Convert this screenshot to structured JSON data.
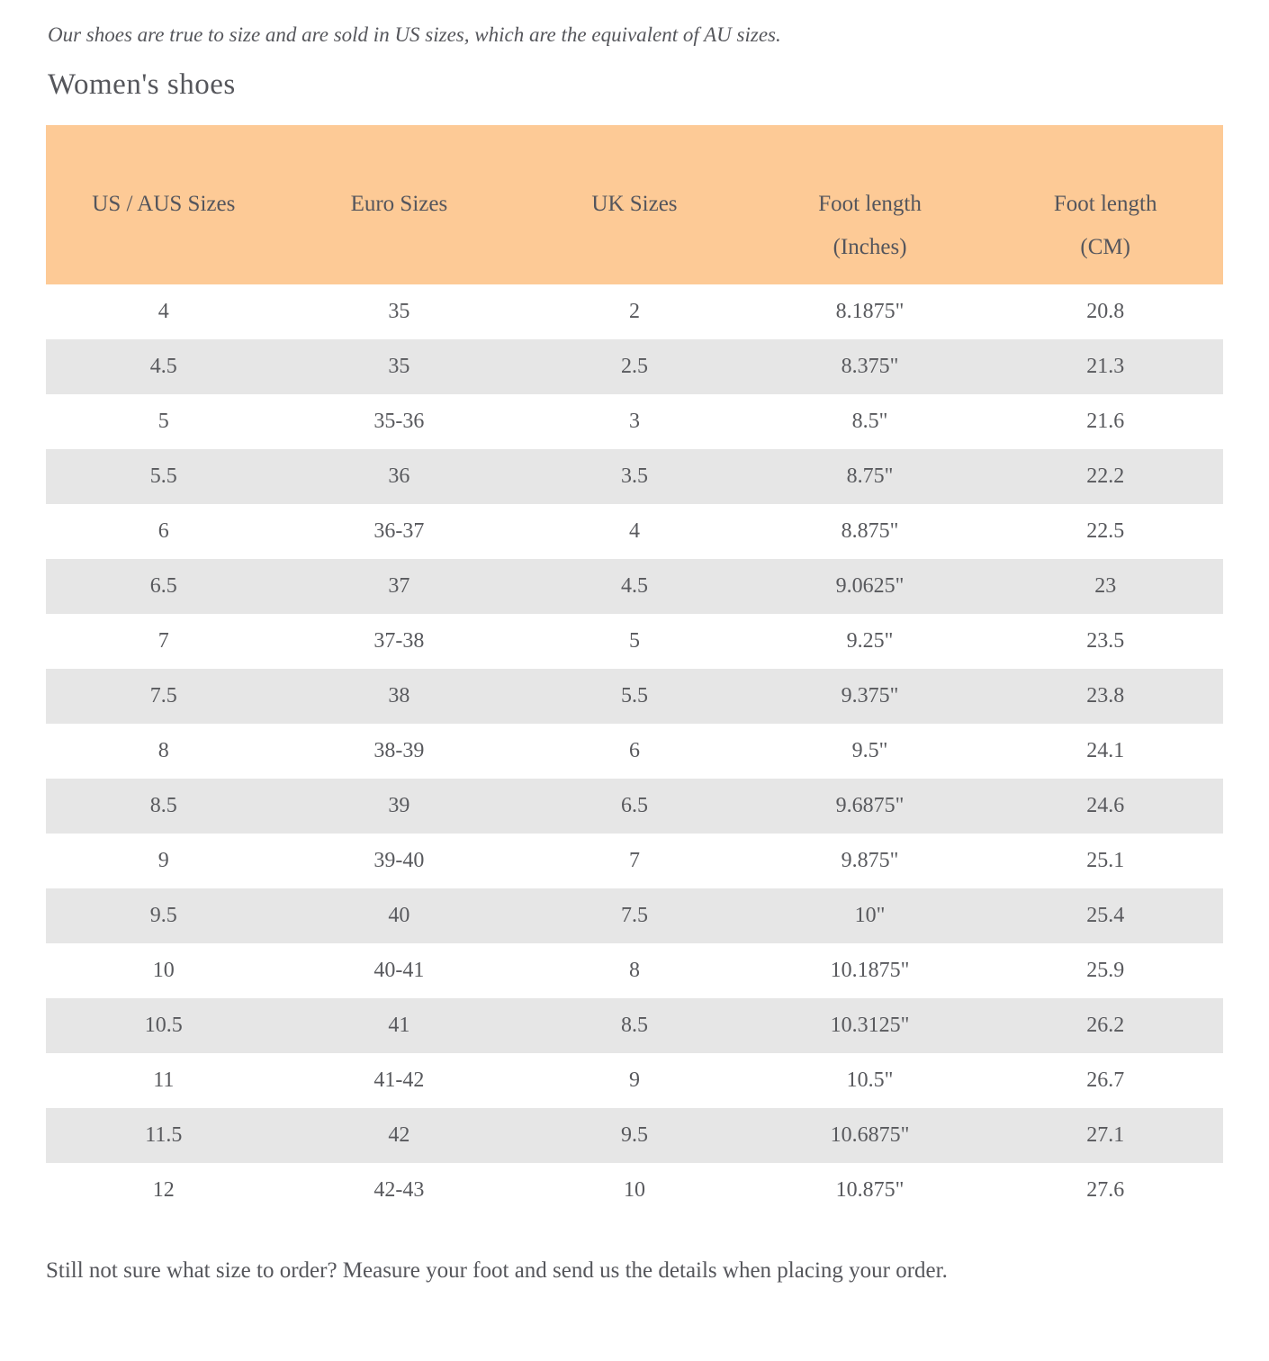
{
  "page": {
    "intro": "Our shoes are true to size and are sold in US sizes, which are the equivalent of AU sizes.",
    "heading": "Women's shoes",
    "footer_note": "Still not sure what size to order? Measure your foot and send us the details when placing your order."
  },
  "table": {
    "columns": [
      "US / AUS Sizes",
      "Euro Sizes",
      "UK Sizes",
      "Foot length\n(Inches)",
      "Foot length\n(CM)"
    ],
    "rows": [
      [
        "4",
        "35",
        "2",
        "8.1875\"",
        "20.8"
      ],
      [
        "4.5",
        "35",
        "2.5",
        "8.375\"",
        "21.3"
      ],
      [
        "5",
        "35-36",
        "3",
        "8.5\"",
        "21.6"
      ],
      [
        "5.5",
        "36",
        "3.5",
        "8.75\"",
        "22.2"
      ],
      [
        "6",
        "36-37",
        "4",
        "8.875\"",
        "22.5"
      ],
      [
        "6.5",
        "37",
        "4.5",
        "9.0625\"",
        "23"
      ],
      [
        "7",
        "37-38",
        "5",
        "9.25\"",
        "23.5"
      ],
      [
        "7.5",
        "38",
        "5.5",
        "9.375\"",
        "23.8"
      ],
      [
        "8",
        "38-39",
        "6",
        "9.5\"",
        "24.1"
      ],
      [
        "8.5",
        "39",
        "6.5",
        "9.6875\"",
        "24.6"
      ],
      [
        "9",
        "39-40",
        "7",
        "9.875\"",
        "25.1"
      ],
      [
        "9.5",
        "40",
        "7.5",
        "10\"",
        "25.4"
      ],
      [
        "10",
        "40-41",
        "8",
        "10.1875\"",
        "25.9"
      ],
      [
        "10.5",
        "41",
        "8.5",
        "10.3125\"",
        "26.2"
      ],
      [
        "11",
        "41-42",
        "9",
        "10.5\"",
        "26.7"
      ],
      [
        "11.5",
        "42",
        "9.5",
        "10.6875\"",
        "27.1"
      ],
      [
        "12",
        "42-43",
        "10",
        "10.875\"",
        "27.6"
      ]
    ]
  },
  "colors": {
    "header_bg": "#fdca96",
    "row_alt_bg": "#e6e6e6",
    "text": "#55565b"
  }
}
